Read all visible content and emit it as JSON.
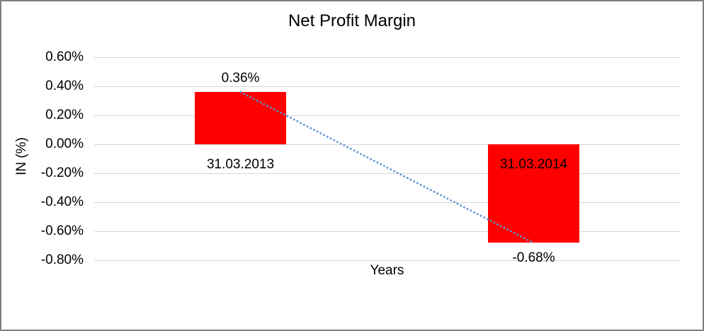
{
  "chart": {
    "title": "Net Profit Margin",
    "y_axis_title": "IN (%)",
    "x_axis_title": "Years"
  },
  "chart_data": {
    "type": "bar",
    "title": "Net Profit Margin",
    "xlabel": "Years",
    "ylabel": "IN (%)",
    "categories": [
      "31.03.2013",
      "31.03.2014"
    ],
    "series": [
      {
        "name": "Net Profit Margin",
        "values": [
          0.36,
          -0.68
        ],
        "data_labels": [
          "0.36%",
          "-0.68%"
        ],
        "color": "#FF0000"
      }
    ],
    "ylim": [
      -0.8,
      0.6
    ],
    "yticks": [
      {
        "label": "0.60%",
        "value": 0.6
      },
      {
        "label": "0.40%",
        "value": 0.4
      },
      {
        "label": "0.20%",
        "value": 0.2
      },
      {
        "label": "0.00%",
        "value": 0.0
      },
      {
        "label": "-0.20%",
        "value": -0.2
      },
      {
        "label": "-0.40%",
        "value": -0.4
      },
      {
        "label": "-0.60%",
        "value": -0.6
      },
      {
        "label": "-0.80%",
        "value": -0.8
      }
    ],
    "grid": "horizontal",
    "gridline_color": "#D6D6D6",
    "legend": "none",
    "trendline": {
      "type": "linear",
      "style": "dotted",
      "color": "#5C94D6",
      "points": [
        {
          "category": "31.03.2013",
          "value": 0.36
        },
        {
          "category": "31.03.2014",
          "value": -0.68
        }
      ]
    }
  }
}
